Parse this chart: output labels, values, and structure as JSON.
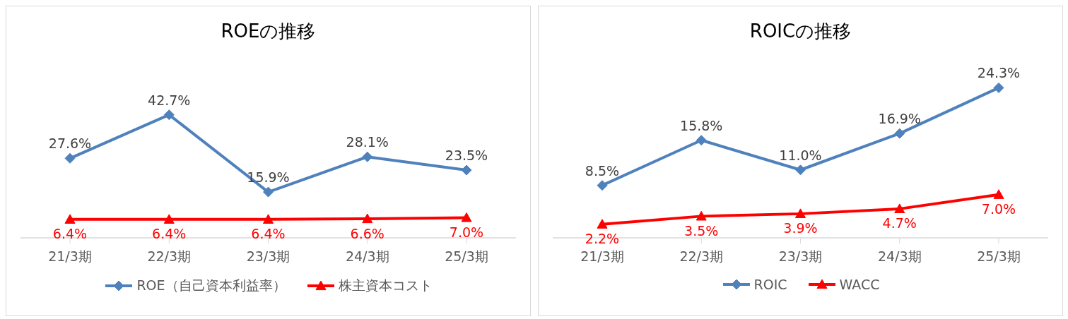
{
  "chart_data": [
    {
      "type": "line",
      "title": "ROEの推移",
      "categories": [
        "21/3期",
        "22/3期",
        "23/3期",
        "24/3期",
        "25/3期"
      ],
      "series": [
        {
          "name": "ROE（自己資本利益率）",
          "color": "#4f81bd",
          "marker": "diamond",
          "values": [
            27.6,
            42.7,
            15.9,
            28.1,
            23.5
          ],
          "value_labels": [
            "27.6%",
            "42.7%",
            "15.9%",
            "28.1%",
            "23.5%"
          ]
        },
        {
          "name": "株主資本コスト",
          "color": "#ff0000",
          "marker": "triangle",
          "values": [
            6.4,
            6.4,
            6.4,
            6.6,
            7.0
          ],
          "value_labels": [
            "6.4%",
            "6.4%",
            "6.4%",
            "6.6%",
            "7.0%"
          ]
        }
      ],
      "legend": "bottom",
      "tick_labels": "x"
    },
    {
      "type": "line",
      "title": "ROICの推移",
      "categories": [
        "21/3期",
        "22/3期",
        "23/3期",
        "24/3期",
        "25/3期"
      ],
      "series": [
        {
          "name": "ROIC",
          "color": "#4f81bd",
          "marker": "diamond",
          "values": [
            8.5,
            15.8,
            11.0,
            16.9,
            24.3
          ],
          "value_labels": [
            "8.5%",
            "15.8%",
            "11.0%",
            "16.9%",
            "24.3%"
          ]
        },
        {
          "name": "WACC",
          "color": "#ff0000",
          "marker": "triangle",
          "values": [
            2.2,
            3.5,
            3.9,
            4.7,
            7.0
          ],
          "value_labels": [
            "2.2%",
            "3.5%",
            "3.9%",
            "4.7%",
            "7.0%"
          ]
        }
      ],
      "legend": "bottom",
      "tick_labels": "x"
    }
  ]
}
